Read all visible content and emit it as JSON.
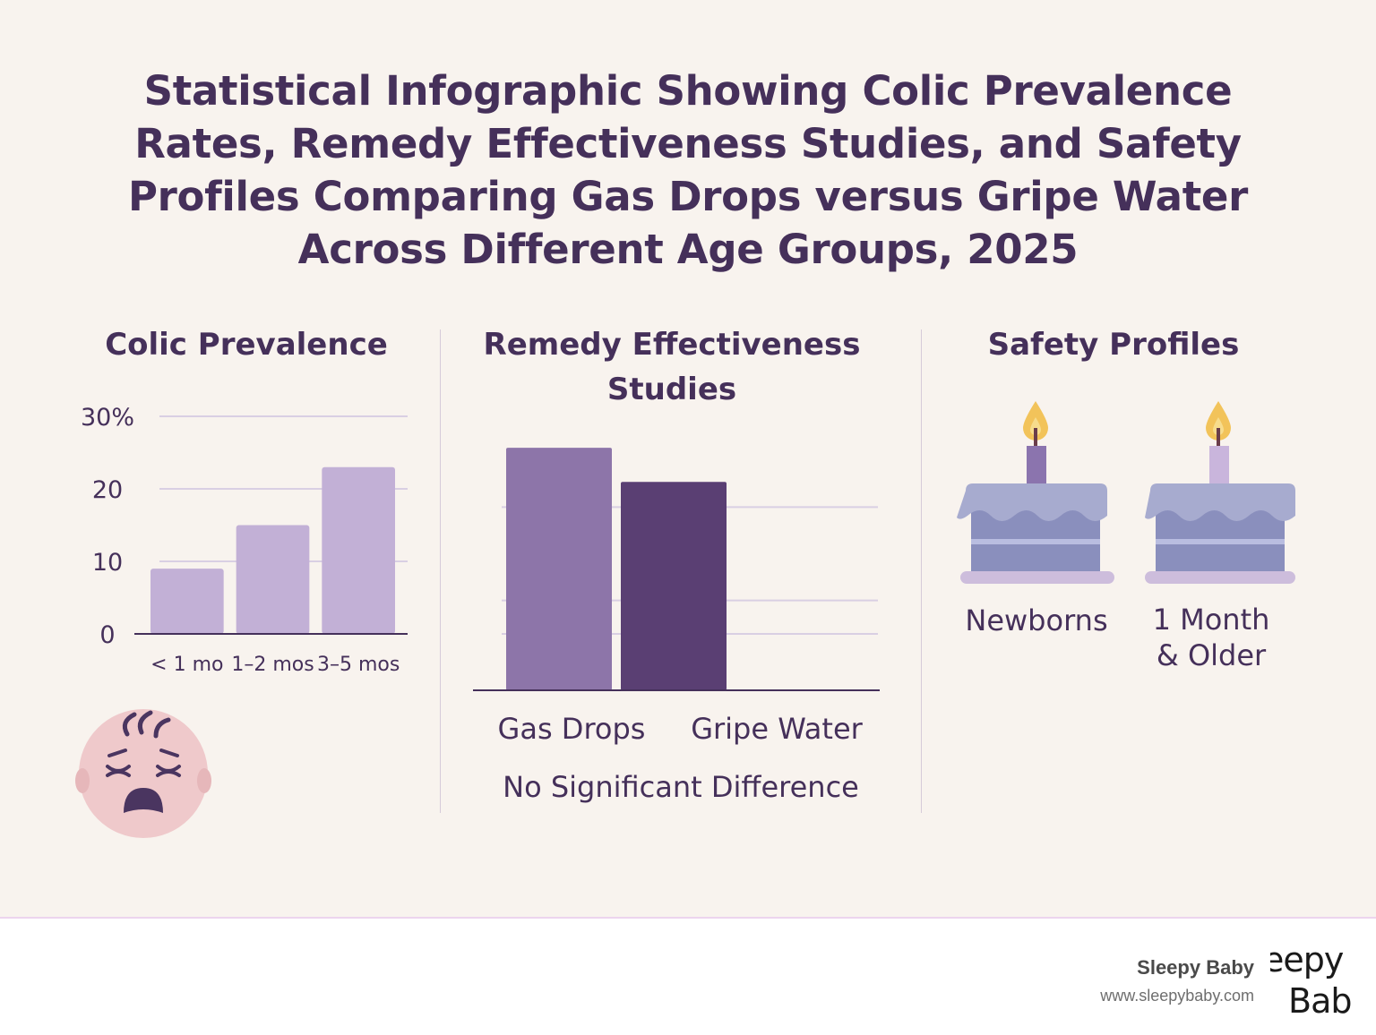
{
  "title": {
    "line1": "Statistical Infographic Showing Colic Prevalence",
    "line2": "Rates, Remedy Effectiveness Studies, and Safety",
    "line3": "Profiles Comparing Gas Drops versus Gripe Water",
    "line4": "Across Different Age Groups, 2025"
  },
  "sections": {
    "prevalence": "Colic Prevalence",
    "effectiveness_line1": "Remedy Effectiveness",
    "effectiveness_line2": "Studies",
    "safety": "Safety Profiles"
  },
  "chart_data": [
    {
      "type": "bar",
      "title": "Colic Prevalence",
      "categories": [
        "< 1 mo",
        "1–2 mos",
        "3–5 mos"
      ],
      "values": [
        9,
        15,
        23
      ],
      "ylim": [
        0,
        30
      ],
      "yticks": [
        0,
        10,
        20,
        30
      ],
      "ytick_labels": [
        "0",
        "10",
        "20",
        "30%"
      ],
      "xlabel": "",
      "ylabel": "",
      "grid": true
    },
    {
      "type": "bar",
      "title": "Remedy Effectiveness Studies",
      "categories": [
        "Gas Drops",
        "Gripe Water"
      ],
      "values": [
        27,
        23.2
      ],
      "ylim": [
        0,
        30
      ],
      "annotation": "No Significant Difference",
      "grid": true
    }
  ],
  "safety": {
    "items": [
      {
        "line1": "Newborns",
        "line2": ""
      },
      {
        "line1": "1 Month",
        "line2": "& Older"
      }
    ]
  },
  "footer": {
    "brand": "Sleepy Baby",
    "url": "www.sleepybaby.com",
    "logo_text_top": "eepy",
    "logo_text_bottom": "Bab"
  },
  "colors": {
    "text": "#45305a",
    "prevalence_bar": "#c2b0d6",
    "gas_drops_bar": "#8d75a9",
    "gripe_water_bar": "#5a3f73",
    "grid": "#d9cfe3",
    "cake_frosting": "#a7abcf",
    "cake_body": "#8a8fbd",
    "cake_plate": "#cdbddc",
    "face": "#efc9cb"
  }
}
